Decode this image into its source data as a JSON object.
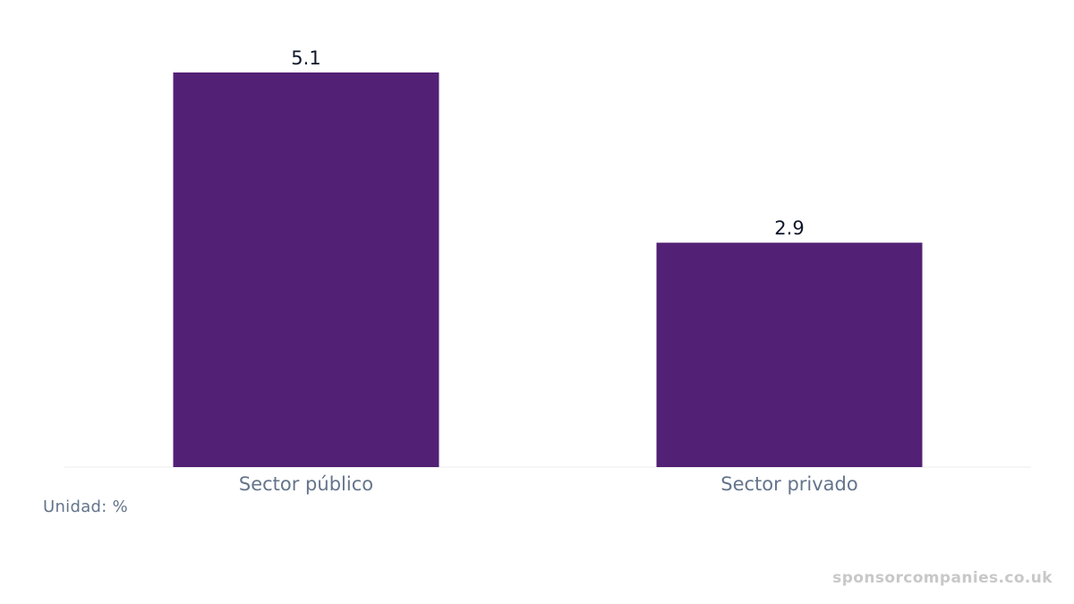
{
  "chart_data": {
    "type": "bar",
    "categories": [
      "Sector público",
      "Sector privado"
    ],
    "values": [
      5.1,
      2.9
    ],
    "data_labels": [
      "5.1",
      "2.9"
    ],
    "unit_note": "Unidad: %",
    "ylim": [
      0,
      5.1
    ],
    "grid": false,
    "legend": "none",
    "colors": {
      "bar": "#522075",
      "value_label": "#0f172a",
      "tick_label": "#64748b",
      "baseline": "#eeeeee"
    }
  },
  "watermark": "sponsorcompanies.co.uk"
}
